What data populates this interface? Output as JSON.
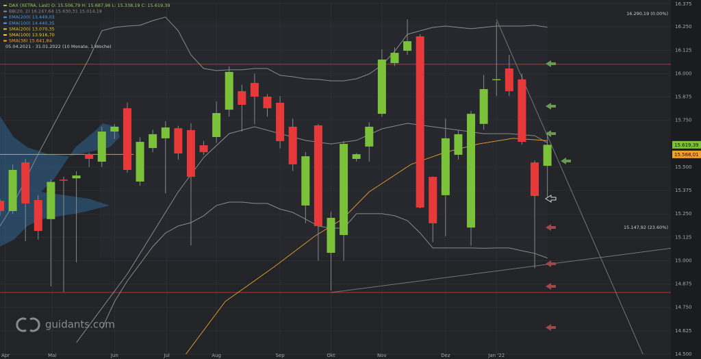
{
  "chart_data": {
    "type": "candlestick",
    "legend": [
      {
        "text": "DAX (XETRA, Last)  O: 15.506,79  H: 15.687,96  L: 15.338,19  C: 15.619,39",
        "color": "#9ccc55"
      },
      {
        "text": "BB(20, 2)  16.247,64  15.630,31  15.014,18",
        "color": "#8a8a8a"
      },
      {
        "text": "EMA(200)  13.449,03",
        "color": "#4a9be0"
      },
      {
        "text": "EMA(100)  14.440,35",
        "color": "#4a9be0"
      },
      {
        "text": "SMA(200)  13.070,35",
        "color": "#e0c030"
      },
      {
        "text": "SMA(100)  13.916,70",
        "color": "#f0d040"
      },
      {
        "text": "SMA(38)  15.641,84",
        "color": "#f0a030"
      }
    ],
    "date_range": "05.04.2021 - 31.01.2022 (10 Monate, 1 Woche)",
    "watermark": "guidants.com",
    "xlim": [
      0,
      52.7
    ],
    "xticks": [
      {
        "value": 0.4,
        "label": "Apr"
      },
      {
        "value": 4.1,
        "label": "Mai"
      },
      {
        "value": 9.0,
        "label": "Jun"
      },
      {
        "value": 13.1,
        "label": "Jul"
      },
      {
        "value": 17.0,
        "label": "Aug"
      },
      {
        "value": 22.0,
        "label": "Sep"
      },
      {
        "value": 26.0,
        "label": "Okt"
      },
      {
        "value": 30.0,
        "label": "Nov"
      },
      {
        "value": 35.0,
        "label": "Dez"
      },
      {
        "value": 39.0,
        "label": "Jan '22"
      }
    ],
    "ylim": [
      14500,
      16375
    ],
    "yticks": [
      {
        "value": 16375,
        "label": "16.375"
      },
      {
        "value": 16250,
        "label": "16.250"
      },
      {
        "value": 16125,
        "label": "16.125"
      },
      {
        "value": 16000,
        "label": "16.000"
      },
      {
        "value": 15875,
        "label": "15.875"
      },
      {
        "value": 15750,
        "label": "15.750"
      },
      {
        "value": 15500,
        "label": "15.500"
      },
      {
        "value": 15375,
        "label": "15.375"
      },
      {
        "value": 15250,
        "label": "15.250"
      },
      {
        "value": 15125,
        "label": "15.125"
      },
      {
        "value": 15000,
        "label": "15.000"
      },
      {
        "value": 14875,
        "label": "14.875"
      },
      {
        "value": 14750,
        "label": "14.750"
      },
      {
        "value": 14625,
        "label": "14.625"
      },
      {
        "value": 14500,
        "label": "14.500"
      }
    ],
    "grid": true,
    "up_color": "#7cc13a",
    "down_color": "#e8393a",
    "candles": {
      "open": [
        15320,
        15265,
        15525,
        15324,
        15222,
        15433,
        15440,
        15569,
        15529,
        15690,
        15815,
        15423,
        15602,
        15654,
        15708,
        15698,
        15617,
        15661,
        15807,
        15906,
        15950,
        15877,
        15844,
        15716,
        15295,
        15723,
        15042,
        15137,
        15544,
        15610,
        15785,
        16056,
        16122,
        16199,
        15448,
        15350,
        15566,
        15177,
        15731,
        15966,
        16027,
        15969,
        15525,
        15506.79
      ],
      "high": [
        15330,
        15514,
        15544,
        15350,
        15434,
        15448,
        15478,
        15577,
        15716,
        15730,
        15845,
        15660,
        15700,
        15745,
        15720,
        15734,
        15640,
        15850,
        16039,
        15940,
        16000,
        15890,
        15880,
        15760,
        15580,
        15730,
        15262,
        15640,
        15575,
        15740,
        16130,
        16140,
        16290,
        16210,
        15450,
        15760,
        15700,
        15800,
        15993,
        16275,
        16100,
        16000,
        15536,
        15687.96
      ],
      "low": [
        15240,
        15251,
        15104,
        15112,
        14863,
        14833,
        14991,
        15500,
        15500,
        15650,
        15470,
        15400,
        15580,
        15360,
        15540,
        15082,
        15565,
        15630,
        15770,
        15690,
        15730,
        15770,
        15600,
        15480,
        15200,
        15000,
        14840,
        15000,
        15530,
        15530,
        15770,
        16040,
        16100,
        15280,
        15100,
        15130,
        15540,
        15080,
        15700,
        15880,
        15880,
        15620,
        14960,
        15338.19
      ],
      "close": [
        15265,
        15485,
        15306,
        15159,
        15421,
        15430,
        15455,
        15544,
        15690,
        15716,
        15485,
        15635,
        15676,
        15712,
        15573,
        15448,
        15580,
        15789,
        16009,
        15833,
        15877,
        15815,
        15639,
        15515,
        15558,
        15185,
        15229,
        15624,
        15569,
        15716,
        16075,
        16111,
        16173,
        15284,
        15200,
        15654,
        15676,
        15785,
        15917,
        15970,
        15906,
        15635,
        15346,
        15619.39
      ]
    },
    "lines": [
      {
        "color": "#8c8c8c",
        "x": [
          0,
          1,
          2,
          3,
          4,
          5,
          6,
          7,
          8,
          9,
          10,
          11,
          12,
          13,
          14,
          15,
          16,
          17,
          18,
          19,
          20,
          21,
          22,
          23,
          24,
          25,
          26,
          27,
          28,
          29,
          30,
          31,
          32,
          33,
          34,
          35,
          36,
          37,
          38,
          39,
          40,
          41,
          42,
          43
        ],
        "values": [
          15185,
          15295,
          15434,
          15570,
          15698,
          15826,
          15954,
          16082,
          16229,
          16247,
          16254,
          16258,
          16283,
          16302,
          16229,
          16100,
          16027,
          16016,
          16020,
          16020,
          16027,
          16027,
          15991,
          15983,
          15972,
          15969,
          15961,
          15961,
          15972,
          15998,
          16045,
          16119,
          16210,
          16229,
          16247,
          16254,
          16247,
          16240,
          16247,
          16254,
          16254,
          16254,
          16258,
          16247.64
        ]
      },
      {
        "color": "#8c8c8c",
        "x": [
          6,
          8,
          10,
          12,
          14,
          16,
          18,
          20,
          22,
          24,
          26,
          28,
          30,
          32,
          34,
          36,
          38,
          40,
          42,
          43
        ],
        "values": [
          14562,
          14746,
          14929,
          15148,
          15368,
          15551,
          15679,
          15716,
          15679,
          15643,
          15624,
          15643,
          15705,
          15734,
          15716,
          15698,
          15679,
          15679,
          15668,
          15630.31
        ]
      },
      {
        "color": "#8c8c8c",
        "x": [
          8,
          9,
          10,
          11,
          12,
          13,
          14,
          15,
          16,
          17,
          18,
          19,
          20,
          21,
          22,
          23,
          24,
          25,
          26,
          27,
          28,
          29,
          30,
          31,
          32,
          33,
          34,
          35,
          36,
          37,
          38,
          39,
          40,
          41,
          42,
          43
        ],
        "values": [
          14636,
          14782,
          14892,
          14983,
          15075,
          15148,
          15185,
          15203,
          15240,
          15295,
          15313,
          15313,
          15306,
          15306,
          15276,
          15258,
          15222,
          15185,
          15174,
          15174,
          15251,
          15251,
          15251,
          15240,
          15214,
          15148,
          15068,
          15068,
          15068,
          15068,
          15066,
          15068,
          15068,
          15053,
          15039,
          15014.18
        ]
      },
      {
        "color": "#d89a2a",
        "x": [
          14.6,
          17.7,
          21.5,
          24.7,
          26.9,
          29,
          32.3,
          35,
          37.6,
          40.3,
          43
        ],
        "values": [
          14500,
          14782,
          14965,
          15130,
          15222,
          15368,
          15515,
          15580,
          15624,
          15654,
          15641.84
        ]
      },
      {
        "color": "#777777",
        "x": [
          26,
          52.7
        ],
        "values": [
          14830,
          15066
        ]
      },
      {
        "color": "#777777",
        "x": [
          39,
          50.5
        ],
        "values": [
          16290,
          14500
        ]
      },
      {
        "color": "#e0a030",
        "x": [
          0,
          10.5
        ],
        "values": [
          15568,
          15568
        ]
      }
    ],
    "hlines": [
      {
        "value": 16050,
        "color": "#c0302f"
      },
      {
        "value": 14830,
        "color": "#c0302f"
      }
    ],
    "level_labels": [
      {
        "value": 16290.19,
        "label": "16.290,19 (0.00%)"
      },
      {
        "value": 15147.92,
        "label": "15.147,92 (23.60%)"
      }
    ],
    "price_markers": [
      {
        "value": 15619.39,
        "label": "15.619,39",
        "color": "#7cc13a"
      },
      {
        "value": 15568.01,
        "label": "15.568,01",
        "color": "#f0a030"
      }
    ]
  }
}
